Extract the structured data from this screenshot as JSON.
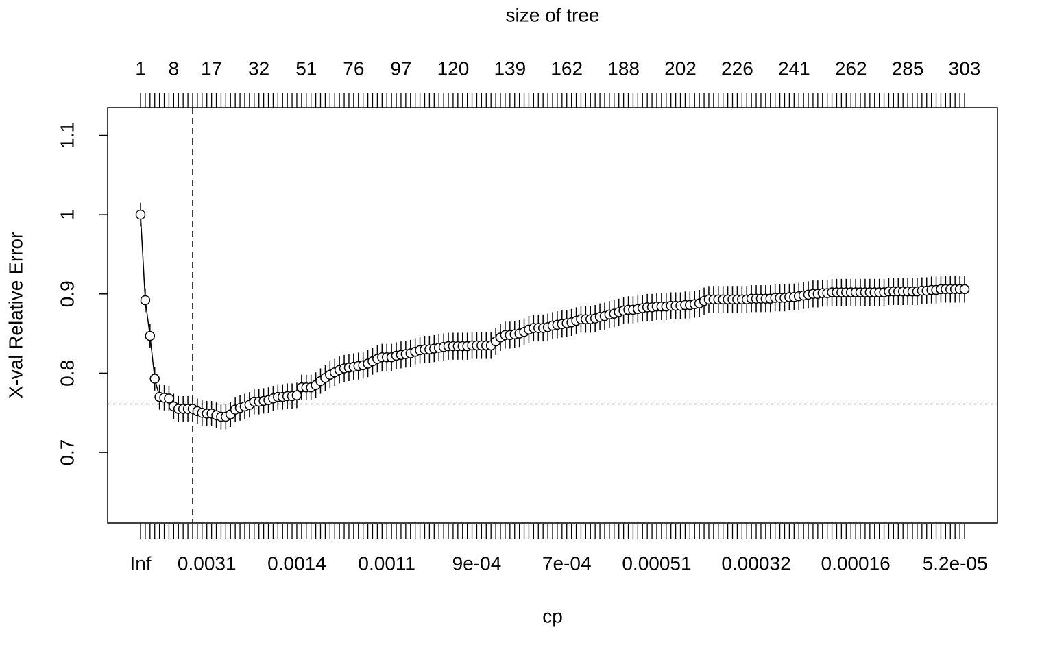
{
  "chart_data": {
    "type": "line",
    "top_label": "size of tree",
    "xlabel": "cp",
    "ylabel": "X-val Relative Error",
    "categories": [
      "Inf",
      null,
      null,
      null,
      null,
      null,
      null,
      null,
      null,
      null,
      null,
      null,
      null,
      null,
      "0.0031",
      null,
      null,
      null,
      null,
      null,
      null,
      null,
      null,
      null,
      null,
      null,
      null,
      null,
      null,
      null,
      null,
      null,
      null,
      "0.0014",
      null,
      null,
      null,
      null,
      null,
      null,
      null,
      null,
      null,
      null,
      null,
      null,
      null,
      null,
      null,
      null,
      null,
      null,
      "0.0011",
      null,
      null,
      null,
      null,
      null,
      null,
      null,
      null,
      null,
      null,
      null,
      null,
      null,
      null,
      null,
      null,
      null,
      null,
      "9e-04",
      null,
      null,
      null,
      null,
      null,
      null,
      null,
      null,
      null,
      null,
      null,
      null,
      null,
      null,
      null,
      null,
      null,
      null,
      "7e-04",
      null,
      null,
      null,
      null,
      null,
      null,
      null,
      null,
      null,
      null,
      null,
      null,
      null,
      null,
      null,
      null,
      null,
      null,
      "0.00051",
      null,
      null,
      null,
      null,
      null,
      null,
      null,
      null,
      null,
      null,
      null,
      null,
      null,
      null,
      null,
      null,
      null,
      null,
      null,
      null,
      "0.00032",
      null,
      null,
      null,
      null,
      null,
      null,
      null,
      null,
      null,
      null,
      null,
      null,
      null,
      null,
      null,
      null,
      null,
      null,
      null,
      null,
      "0.00016",
      null,
      null,
      null,
      null,
      null,
      null,
      null,
      null,
      null,
      null,
      null,
      null,
      null,
      null,
      null,
      null,
      null,
      null,
      null,
      null,
      "5.2e-05",
      null,
      null
    ],
    "top_categories": [
      1,
      null,
      null,
      null,
      null,
      null,
      null,
      8,
      null,
      null,
      null,
      null,
      null,
      null,
      null,
      17,
      null,
      null,
      null,
      null,
      null,
      null,
      null,
      null,
      null,
      32,
      null,
      null,
      null,
      null,
      null,
      null,
      null,
      null,
      null,
      51,
      null,
      null,
      null,
      null,
      null,
      null,
      null,
      null,
      null,
      76,
      null,
      null,
      null,
      null,
      null,
      null,
      null,
      null,
      null,
      97,
      null,
      null,
      null,
      null,
      null,
      null,
      null,
      null,
      null,
      null,
      120,
      null,
      null,
      null,
      null,
      null,
      null,
      null,
      null,
      null,
      null,
      null,
      139,
      null,
      null,
      null,
      null,
      null,
      null,
      null,
      null,
      null,
      null,
      null,
      162,
      null,
      null,
      null,
      null,
      null,
      null,
      null,
      null,
      null,
      null,
      null,
      188,
      null,
      null,
      null,
      null,
      null,
      null,
      null,
      null,
      null,
      null,
      null,
      202,
      null,
      null,
      null,
      null,
      null,
      null,
      null,
      null,
      null,
      null,
      null,
      226,
      null,
      null,
      null,
      null,
      null,
      null,
      null,
      null,
      null,
      null,
      null,
      241,
      null,
      null,
      null,
      null,
      null,
      null,
      null,
      null,
      null,
      null,
      null,
      262,
      null,
      null,
      null,
      null,
      null,
      null,
      null,
      null,
      null,
      null,
      null,
      285,
      null,
      null,
      null,
      null,
      null,
      null,
      null,
      null,
      null,
      null,
      null,
      303
    ],
    "values": [
      1.0,
      0.892,
      0.847,
      0.793,
      0.77,
      0.769,
      0.768,
      0.758,
      0.755,
      0.755,
      0.755,
      0.755,
      0.752,
      0.75,
      0.749,
      0.749,
      0.747,
      0.745,
      0.745,
      0.748,
      0.754,
      0.756,
      0.758,
      0.76,
      0.764,
      0.764,
      0.765,
      0.766,
      0.768,
      0.77,
      0.77,
      0.771,
      0.771,
      0.772,
      0.782,
      0.782,
      0.782,
      0.785,
      0.79,
      0.794,
      0.798,
      0.801,
      0.804,
      0.806,
      0.807,
      0.808,
      0.809,
      0.81,
      0.812,
      0.815,
      0.818,
      0.82,
      0.82,
      0.82,
      0.822,
      0.823,
      0.824,
      0.825,
      0.827,
      0.829,
      0.83,
      0.83,
      0.831,
      0.832,
      0.833,
      0.834,
      0.834,
      0.834,
      0.834,
      0.834,
      0.835,
      0.835,
      0.835,
      0.835,
      0.835,
      0.84,
      0.845,
      0.848,
      0.848,
      0.849,
      0.85,
      0.852,
      0.855,
      0.857,
      0.857,
      0.857,
      0.858,
      0.86,
      0.861,
      0.862,
      0.863,
      0.864,
      0.866,
      0.868,
      0.868,
      0.868,
      0.869,
      0.871,
      0.872,
      0.874,
      0.875,
      0.877,
      0.879,
      0.88,
      0.88,
      0.881,
      0.882,
      0.883,
      0.883,
      0.884,
      0.884,
      0.884,
      0.885,
      0.885,
      0.885,
      0.886,
      0.886,
      0.887,
      0.888,
      0.891,
      0.893,
      0.893,
      0.893,
      0.893,
      0.893,
      0.893,
      0.893,
      0.893,
      0.893,
      0.894,
      0.894,
      0.894,
      0.894,
      0.894,
      0.895,
      0.895,
      0.895,
      0.896,
      0.896,
      0.897,
      0.898,
      0.899,
      0.9,
      0.9,
      0.901,
      0.901,
      0.902,
      0.902,
      0.902,
      0.902,
      0.902,
      0.902,
      0.902,
      0.902,
      0.902,
      0.902,
      0.902,
      0.902,
      0.903,
      0.903,
      0.903,
      0.903,
      0.903,
      0.903,
      0.903,
      0.904,
      0.904,
      0.905,
      0.905,
      0.906,
      0.906,
      0.906,
      0.906,
      0.906,
      0.906
    ],
    "errors": [
      0.015,
      0.015,
      0.015,
      0.015,
      0.016,
      0.016,
      0.016,
      0.016,
      0.016,
      0.016,
      0.016,
      0.016,
      0.016,
      0.016,
      0.016,
      0.016,
      0.016,
      0.016,
      0.016,
      0.016,
      0.016,
      0.016,
      0.016,
      0.016,
      0.016,
      0.016,
      0.016,
      0.016,
      0.016,
      0.016,
      0.016,
      0.016,
      0.016,
      0.016,
      0.016,
      0.016,
      0.016,
      0.016,
      0.016,
      0.016,
      0.017,
      0.017,
      0.017,
      0.017,
      0.017,
      0.017,
      0.017,
      0.017,
      0.017,
      0.017,
      0.017,
      0.017,
      0.017,
      0.017,
      0.017,
      0.017,
      0.017,
      0.017,
      0.017,
      0.017,
      0.017,
      0.017,
      0.017,
      0.017,
      0.017,
      0.017,
      0.017,
      0.017,
      0.017,
      0.017,
      0.017,
      0.017,
      0.017,
      0.017,
      0.017,
      0.017,
      0.017,
      0.017,
      0.017,
      0.017,
      0.017,
      0.017,
      0.017,
      0.017,
      0.017,
      0.017,
      0.017,
      0.017,
      0.017,
      0.017,
      0.017,
      0.017,
      0.017,
      0.017,
      0.017,
      0.017,
      0.017,
      0.017,
      0.017,
      0.017,
      0.017,
      0.017,
      0.017,
      0.017,
      0.017,
      0.017,
      0.017,
      0.017,
      0.017,
      0.017,
      0.017,
      0.017,
      0.017,
      0.017,
      0.017,
      0.017,
      0.017,
      0.017,
      0.017,
      0.017,
      0.017,
      0.017,
      0.017,
      0.017,
      0.017,
      0.017,
      0.017,
      0.017,
      0.017,
      0.017,
      0.017,
      0.017,
      0.017,
      0.017,
      0.017,
      0.017,
      0.017,
      0.017,
      0.017,
      0.017,
      0.017,
      0.017,
      0.017,
      0.017,
      0.017,
      0.017,
      0.017,
      0.017,
      0.017,
      0.017,
      0.017,
      0.017,
      0.017,
      0.017,
      0.017,
      0.017,
      0.017,
      0.017,
      0.017,
      0.017,
      0.017,
      0.017,
      0.017,
      0.017,
      0.017,
      0.017,
      0.017,
      0.017,
      0.017,
      0.017,
      0.017,
      0.017,
      0.017,
      0.017,
      0.017
    ],
    "ylim": [
      0.611,
      1.135
    ],
    "yticks": [
      0.7,
      0.8,
      0.9,
      1.0,
      1.1
    ],
    "hline": 0.761,
    "vline_index": 11,
    "color": "#000000"
  }
}
